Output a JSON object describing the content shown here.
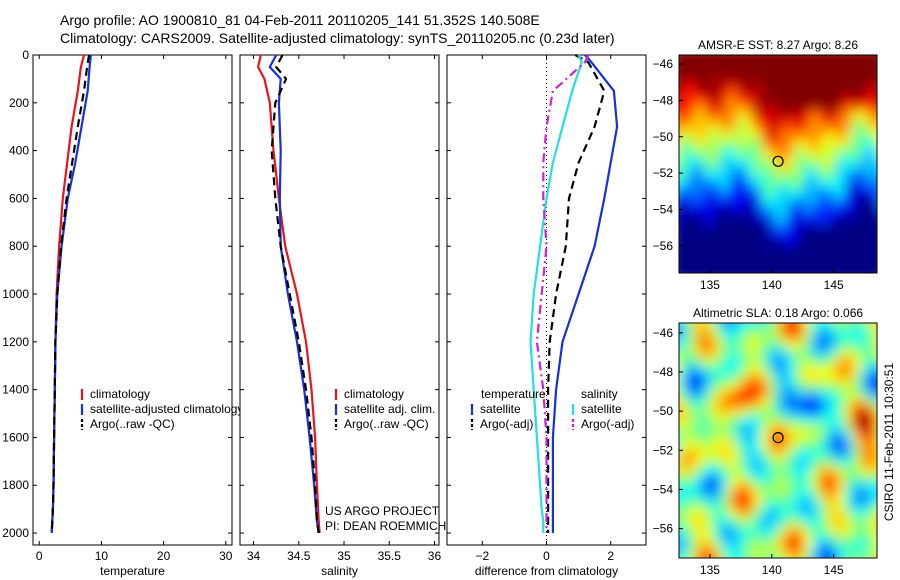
{
  "header": {
    "line1": "Argo profile: AO 1900810_81 04-Feb-2011 20110205_141 51.352S 140.508E",
    "line2": "Climatology: CARS2009. Satellite-adjusted climatology: synTS_20110205.nc (0.23d later)"
  },
  "credits": {
    "project": "US ARGO PROJECT",
    "pi": "PI: DEAN ROEMMICH",
    "csiro": "CSIRO 11-Feb-2011 10:30:51"
  },
  "colors": {
    "climatology": "#e8141e",
    "satellite": "#1430e0",
    "argo": "#000000",
    "salinity_satellite": "#22e0e0",
    "salinity_argo": "#d020d0"
  },
  "chart_data": [
    {
      "type": "line",
      "id": "temperature-profile",
      "xlabel": "temperature",
      "ylabel": "",
      "xlim": [
        -1,
        31
      ],
      "ylim": [
        2050,
        0
      ],
      "xticks": [
        0,
        10,
        20,
        30
      ],
      "yticks": [
        0,
        200,
        400,
        600,
        800,
        1000,
        1200,
        1400,
        1600,
        1800,
        2000
      ],
      "legend": [
        "climatology",
        "satellite-adjusted climatology",
        "Argo(..raw -QC)"
      ],
      "legend_position": "lower-right",
      "series": [
        {
          "name": "climatology",
          "style": "solid",
          "color_key": "climatology",
          "x": [
            7.2,
            6.7,
            6.2,
            5.2,
            4.5,
            3.8,
            3.2,
            2.8,
            2.6,
            2.5,
            2.4,
            2.3,
            2.2,
            2.1,
            2.0
          ],
          "y": [
            0,
            50,
            150,
            300,
            450,
            600,
            800,
            1000,
            1200,
            1400,
            1600,
            1800,
            1900,
            1950,
            2000
          ]
        },
        {
          "name": "satellite-adjusted climatology",
          "style": "solid",
          "color_key": "satellite",
          "x": [
            8.3,
            8.1,
            7.8,
            6.8,
            5.8,
            4.6,
            3.6,
            2.9,
            2.6,
            2.5,
            2.4,
            2.3,
            2.2,
            2.1,
            2.0
          ],
          "y": [
            0,
            50,
            150,
            300,
            450,
            600,
            800,
            1000,
            1200,
            1400,
            1600,
            1800,
            1900,
            1950,
            2000
          ]
        },
        {
          "name": "Argo(..raw -QC)",
          "style": "dashed",
          "color_key": "argo",
          "x": [
            8.0,
            7.7,
            7.2,
            6.2,
            5.3,
            4.4,
            3.5,
            2.9,
            2.6,
            2.5,
            2.4,
            2.3,
            2.2,
            2.1,
            2.0
          ],
          "y": [
            0,
            50,
            150,
            300,
            450,
            600,
            800,
            1000,
            1200,
            1400,
            1600,
            1800,
            1900,
            1950,
            2000
          ]
        }
      ]
    },
    {
      "type": "line",
      "id": "salinity-profile",
      "xlabel": "salinity",
      "ylabel": "",
      "xlim": [
        33.85,
        36.05
      ],
      "ylim": [
        2050,
        0
      ],
      "xticks": [
        34,
        34.5,
        35,
        35.5,
        36
      ],
      "yticks": [
        0,
        200,
        400,
        600,
        800,
        1000,
        1200,
        1400,
        1600,
        1800,
        2000
      ],
      "legend": [
        "climatology",
        "satellite adj. clim.",
        "Argo(..raw -QC)"
      ],
      "legend_position": "lower-right",
      "series": [
        {
          "name": "climatology",
          "style": "solid",
          "color_key": "climatology",
          "x": [
            34.08,
            34.05,
            34.12,
            34.18,
            34.22,
            34.28,
            34.35,
            34.48,
            34.58,
            34.64,
            34.68,
            34.7,
            34.72,
            34.73
          ],
          "y": [
            0,
            50,
            100,
            200,
            400,
            600,
            800,
            1000,
            1200,
            1400,
            1600,
            1800,
            1950,
            2000
          ]
        },
        {
          "name": "satellite adj. clim.",
          "style": "solid",
          "color_key": "satellite",
          "x": [
            34.25,
            34.18,
            34.3,
            34.28,
            34.3,
            34.29,
            34.3,
            34.38,
            34.48,
            34.56,
            34.62,
            34.67,
            34.7,
            34.72
          ],
          "y": [
            0,
            50,
            100,
            200,
            400,
            600,
            800,
            1000,
            1200,
            1400,
            1600,
            1800,
            1950,
            2000
          ]
        },
        {
          "name": "Argo(..raw -QC)",
          "style": "dashed",
          "color_key": "argo",
          "x": [
            34.32,
            34.25,
            34.36,
            34.24,
            34.2,
            34.24,
            34.3,
            34.4,
            34.5,
            34.58,
            34.64,
            34.68,
            34.7,
            34.72
          ],
          "y": [
            0,
            50,
            100,
            200,
            400,
            600,
            800,
            1000,
            1200,
            1400,
            1600,
            1800,
            1950,
            2000
          ]
        }
      ]
    },
    {
      "type": "line",
      "id": "difference-profile",
      "xlabel": "difference from climatology",
      "ylabel": "",
      "xlim": [
        -3.1,
        3.1
      ],
      "ylim": [
        2050,
        0
      ],
      "xticks": [
        -2,
        0,
        2
      ],
      "yticks": [
        0,
        200,
        400,
        600,
        800,
        1000,
        1200,
        1400,
        1600,
        1800,
        2000
      ],
      "reference_line": 0,
      "legend_groups": [
        {
          "title": "temperature",
          "entries": [
            "satellite",
            "Argo(-adj)"
          ]
        },
        {
          "title": "salinity",
          "entries": [
            "satellite",
            "Argo(-adj)"
          ]
        }
      ],
      "legend_position": "lower-right",
      "series": [
        {
          "name": "satellite",
          "group": "temperature",
          "style": "solid",
          "color_key": "satellite",
          "x": [
            1.2,
            1.4,
            2.1,
            2.2,
            2.0,
            1.8,
            1.5,
            1.0,
            0.5,
            0.3,
            0.2,
            0.2,
            0.2,
            0.2,
            0.2
          ],
          "y": [
            0,
            30,
            150,
            300,
            450,
            600,
            800,
            1000,
            1200,
            1400,
            1600,
            1800,
            1900,
            1950,
            2000
          ]
        },
        {
          "name": "Argo(-adj)",
          "group": "temperature",
          "style": "dashed",
          "color_key": "argo",
          "x": [
            0.9,
            1.3,
            1.8,
            1.5,
            1.0,
            0.7,
            0.6,
            0.3,
            0.1,
            0.05,
            0.05,
            0.05,
            0.05,
            0.05,
            0.05
          ],
          "y": [
            0,
            30,
            150,
            300,
            450,
            600,
            800,
            1000,
            1200,
            1400,
            1600,
            1800,
            1900,
            1950,
            2000
          ]
        },
        {
          "name": "satellite",
          "group": "salinity",
          "style": "solid",
          "color_key": "salinity_satellite",
          "x": [
            1.0,
            1.1,
            0.8,
            0.5,
            0.2,
            0.0,
            -0.2,
            -0.4,
            -0.5,
            -0.4,
            -0.3,
            -0.2,
            -0.15,
            -0.1,
            -0.1
          ],
          "y": [
            0,
            30,
            150,
            300,
            450,
            600,
            800,
            1000,
            1200,
            1400,
            1600,
            1800,
            1900,
            1950,
            2000
          ]
        },
        {
          "name": "Argo(-adj)",
          "group": "salinity",
          "style": "dashdot",
          "color_key": "salinity_argo",
          "x": [
            1.3,
            1.2,
            0.2,
            0.0,
            -0.1,
            -0.1,
            0.0,
            -0.15,
            -0.3,
            -0.1,
            0.0,
            0.0,
            0.0,
            0.0,
            0.0
          ],
          "y": [
            0,
            30,
            150,
            300,
            450,
            600,
            800,
            1000,
            1200,
            1400,
            1600,
            1800,
            1900,
            1950,
            2000
          ]
        }
      ]
    },
    {
      "type": "heatmap",
      "id": "sst-map",
      "title": "AMSR-E SST: 8.27 Argo: 8.26",
      "xlim": [
        132.5,
        148.5
      ],
      "ylim": [
        -57.5,
        -45.5
      ],
      "xticks": [
        135,
        140,
        145
      ],
      "yticks": [
        -46,
        -48,
        -50,
        -52,
        -54,
        -56
      ],
      "marker": {
        "lon": 140.508,
        "lat": -51.352
      },
      "colormap": "jet"
    },
    {
      "type": "heatmap",
      "id": "sla-map",
      "title": "Altimetric SLA: 0.18 Argo: 0.066",
      "xlim": [
        132.5,
        148.5
      ],
      "ylim": [
        -57.5,
        -45.5
      ],
      "xticks": [
        135,
        140,
        145
      ],
      "yticks": [
        -46,
        -48,
        -50,
        -52,
        -54,
        -56
      ],
      "marker": {
        "lon": 140.508,
        "lat": -51.352
      },
      "colormap": "jet"
    }
  ]
}
